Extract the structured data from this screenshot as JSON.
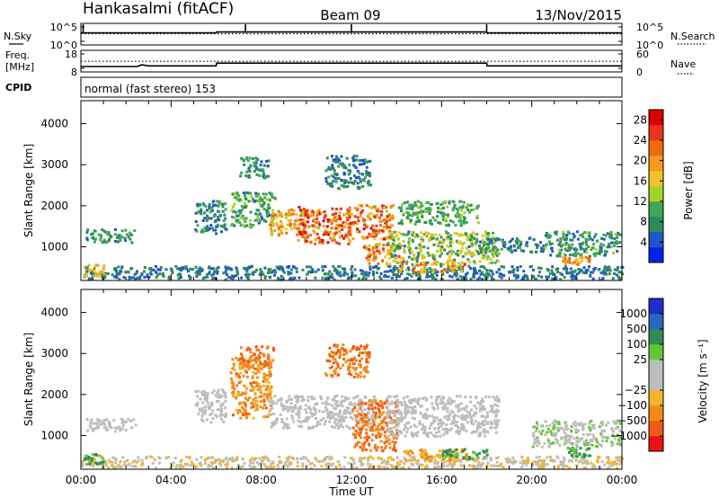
{
  "header": {
    "station": "Hankasalmi (fitACF)",
    "beam": "Beam 09",
    "date": "13/Nov/2015"
  },
  "panel_labels": {
    "nsky": "N.Sky",
    "nsearch": "N.Search",
    "freq_line1": "Freq.",
    "freq_line2": "[MHz]",
    "nave": "Nave",
    "cpid": "CPID",
    "mode": "normal (fast stereo) 153"
  },
  "colors": {
    "power": [
      "#0022ee",
      "#2255cc",
      "#2e8b57",
      "#3fa65b",
      "#a6d12a",
      "#f2c12a",
      "#f59a1f",
      "#f06a12",
      "#e83418",
      "#d90000"
    ],
    "velocity": [
      "#ee1111",
      "#f05a14",
      "#f08a1a",
      "#f2b42a",
      "#bdbdbd",
      "#bdbdbd",
      "#66c43a",
      "#2e8b57",
      "#2a68c0",
      "#1c2fc8"
    ]
  },
  "chart_data": [
    {
      "type": "line",
      "id": "noise",
      "left_axis_ticks": [
        "10^5",
        "10^0"
      ],
      "right_axis_ticks": [
        "10^5",
        "10^0"
      ],
      "series": [
        {
          "name": "N.Sky",
          "style": "solid",
          "x": [
            0,
            6,
            6.02,
            18,
            18.02,
            24
          ],
          "y": [
            2.8,
            2.8,
            3.0,
            3.0,
            2.8,
            2.8
          ]
        },
        {
          "name": "N.Search",
          "style": "dotted",
          "x": [
            0,
            24
          ],
          "y": [
            2.6,
            2.6
          ]
        }
      ],
      "spikes_x": [
        0.1,
        7.3,
        12.0,
        18.0
      ]
    },
    {
      "type": "line",
      "id": "frequency",
      "left_axis_ticks": [
        18,
        8
      ],
      "right_axis_ticks": [
        60,
        0
      ],
      "series": [
        {
          "name": "Freq",
          "style": "solid",
          "x": [
            0,
            2.5,
            2.7,
            3.0,
            6,
            6.02,
            18,
            18.02,
            24
          ],
          "y": [
            10.5,
            10.5,
            11.3,
            10.8,
            10.8,
            12.1,
            12.1,
            10.8,
            10.8
          ]
        },
        {
          "name": "Nave",
          "style": "dotted",
          "x": [
            0,
            24
          ],
          "y": [
            12.9,
            12.9
          ]
        }
      ]
    },
    {
      "type": "heatmap",
      "id": "power",
      "ylabel": "Slant Range [km]",
      "yticks": [
        1000,
        2000,
        3000,
        4000
      ],
      "ylim": [
        180,
        4560
      ],
      "xlim": [
        0,
        24
      ],
      "colorbar": {
        "label": "Power [dB]",
        "ticks": [
          4,
          8,
          12,
          16,
          20,
          24,
          28
        ],
        "range": [
          0,
          30
        ]
      },
      "echo_regions": [
        {
          "x": [
            0.2,
            2.4
          ],
          "y": [
            1130,
            1450
          ],
          "v": [
            5,
            11
          ]
        },
        {
          "x": [
            0,
            24
          ],
          "y": [
            230,
            560
          ],
          "v": [
            3,
            9
          ]
        },
        {
          "x": [
            0.1,
            1.0
          ],
          "y": [
            300,
            600
          ],
          "v": [
            10,
            20
          ]
        },
        {
          "x": [
            5.0,
            6.4
          ],
          "y": [
            1350,
            2150
          ],
          "v": [
            3,
            11
          ]
        },
        {
          "x": [
            6.6,
            8.6
          ],
          "y": [
            1500,
            2350
          ],
          "v": [
            5,
            13
          ]
        },
        {
          "x": [
            8.3,
            10.0
          ],
          "y": [
            1300,
            1950
          ],
          "v": [
            12,
            24
          ]
        },
        {
          "x": [
            9.5,
            12.0
          ],
          "y": [
            1100,
            2000
          ],
          "v": [
            14,
            29
          ]
        },
        {
          "x": [
            11.8,
            13.8
          ],
          "y": [
            1200,
            2050
          ],
          "v": [
            14,
            28
          ]
        },
        {
          "x": [
            12.5,
            14.2
          ],
          "y": [
            600,
            1150
          ],
          "v": [
            12,
            26
          ]
        },
        {
          "x": [
            14.0,
            17.6
          ],
          "y": [
            1550,
            2150
          ],
          "v": [
            6,
            13
          ]
        },
        {
          "x": [
            13.5,
            18.5
          ],
          "y": [
            600,
            1400
          ],
          "v": [
            5,
            18
          ]
        },
        {
          "x": [
            14.0,
            17.0
          ],
          "y": [
            400,
            650
          ],
          "v": [
            12,
            26
          ]
        },
        {
          "x": [
            17.5,
            20.5
          ],
          "y": [
            900,
            1250
          ],
          "v": [
            3,
            10
          ]
        },
        {
          "x": [
            20.5,
            23.9
          ],
          "y": [
            800,
            1400
          ],
          "v": [
            4,
            13
          ]
        },
        {
          "x": [
            21.3,
            22.6
          ],
          "y": [
            600,
            800
          ],
          "v": [
            16,
            24
          ]
        },
        {
          "x": [
            7.0,
            8.4
          ],
          "y": [
            2700,
            3200
          ],
          "v": [
            3,
            12
          ]
        },
        {
          "x": [
            10.8,
            12.8
          ],
          "y": [
            2450,
            3250
          ],
          "v": [
            3,
            10
          ]
        }
      ]
    },
    {
      "type": "heatmap",
      "id": "velocity",
      "ylabel": "Slant Range [km]",
      "yticks": [
        1000,
        2000,
        3000,
        4000
      ],
      "ylim": [
        180,
        4560
      ],
      "xlim": [
        "00:00",
        "00:00"
      ],
      "xticks": [
        "00:00",
        "04:00",
        "08:00",
        "12:00",
        "16:00",
        "20:00",
        "00:00"
      ],
      "xlabel": "Time UT",
      "colorbar": {
        "label": "Velocity [m s⁻¹]",
        "ticks": [
          "1000",
          "500",
          "100",
          "25",
          "−25",
          "−100",
          "−500",
          "−1000"
        ]
      },
      "echo_regions": [
        {
          "x": [
            0.2,
            2.4
          ],
          "y": [
            1130,
            1450
          ],
          "v": [
            4,
            5
          ]
        },
        {
          "x": [
            0,
            24
          ],
          "y": [
            230,
            520
          ],
          "v": [
            3,
            4
          ]
        },
        {
          "x": [
            0.1,
            1.0
          ],
          "y": [
            330,
            600
          ],
          "v": [
            6,
            7
          ]
        },
        {
          "x": [
            5.0,
            6.4
          ],
          "y": [
            1350,
            2150
          ],
          "v": [
            4,
            5
          ]
        },
        {
          "x": [
            6.6,
            8.4
          ],
          "y": [
            1450,
            2950
          ],
          "v": [
            1,
            3
          ]
        },
        {
          "x": [
            8.3,
            13.0
          ],
          "y": [
            1200,
            2000
          ],
          "v": [
            4,
            5
          ]
        },
        {
          "x": [
            12.0,
            14.0
          ],
          "y": [
            650,
            1900
          ],
          "v": [
            1,
            2
          ]
        },
        {
          "x": [
            13.5,
            18.5
          ],
          "y": [
            1000,
            2000
          ],
          "v": [
            4,
            5
          ]
        },
        {
          "x": [
            14.2,
            17.2
          ],
          "y": [
            400,
            700
          ],
          "v": [
            2,
            3
          ]
        },
        {
          "x": [
            16.0,
            18.0
          ],
          "y": [
            450,
            700
          ],
          "v": [
            6,
            7
          ]
        },
        {
          "x": [
            20.0,
            23.9
          ],
          "y": [
            750,
            1400
          ],
          "v": [
            4,
            6
          ]
        },
        {
          "x": [
            21.5,
            22.6
          ],
          "y": [
            500,
            750
          ],
          "v": [
            6,
            7
          ]
        },
        {
          "x": [
            7.0,
            8.5
          ],
          "y": [
            2700,
            3200
          ],
          "v": [
            1,
            2
          ]
        },
        {
          "x": [
            10.8,
            12.8
          ],
          "y": [
            2450,
            3250
          ],
          "v": [
            1,
            2
          ]
        }
      ]
    }
  ]
}
